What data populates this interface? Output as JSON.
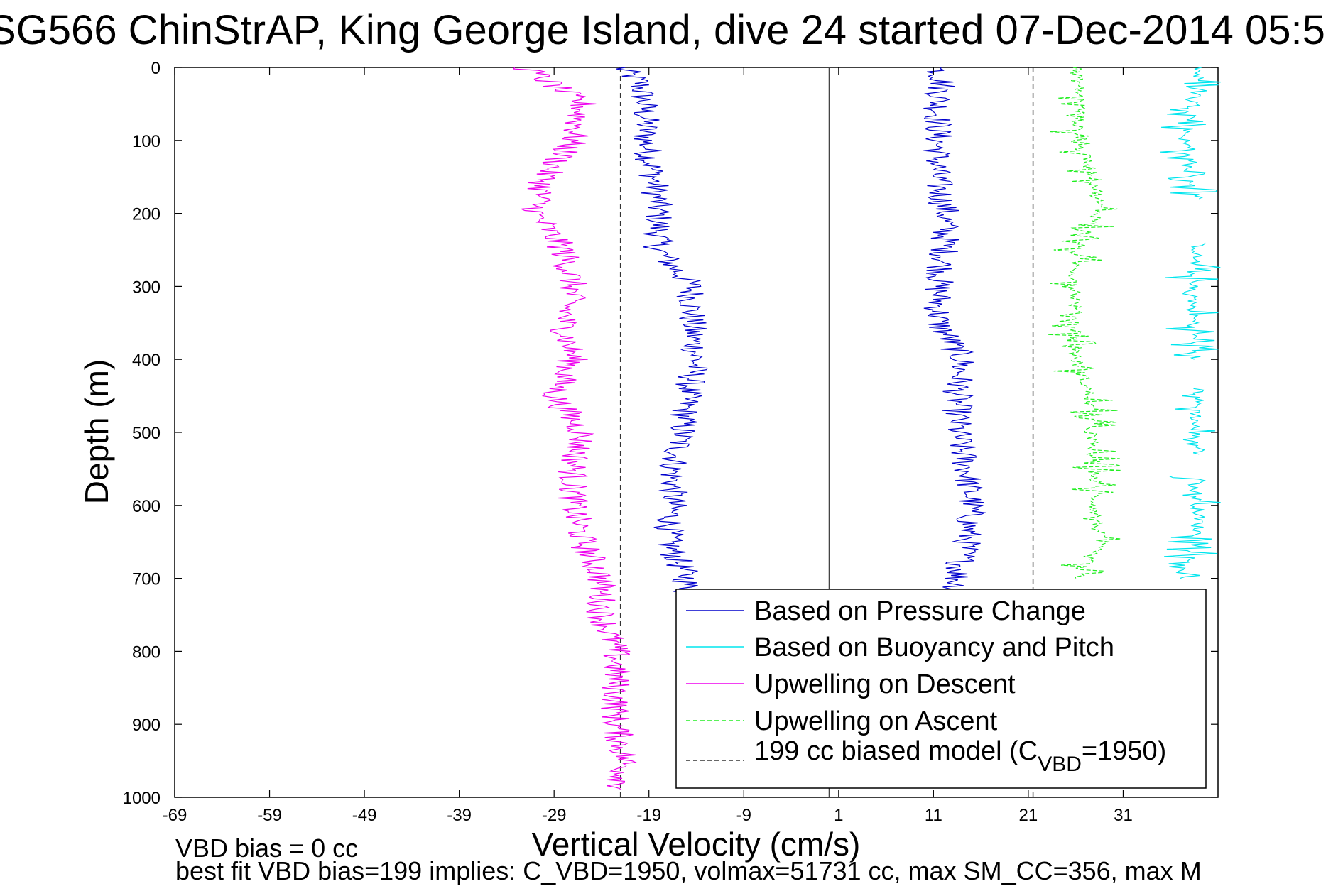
{
  "chart_data": {
    "type": "line",
    "title": "SG566 ChinStrAP, King George Island, dive 24 started 07-Dec-2014 05:5",
    "xlabel": "Vertical Velocity (cm/s)",
    "ylabel": "Depth (m)",
    "xlim": [
      -69,
      41
    ],
    "ylim": [
      1000,
      0
    ],
    "x_ticks": [
      "-69",
      "-59",
      "-49",
      "-39",
      "-29",
      "-19",
      "-9",
      "1",
      "11",
      "21",
      "31"
    ],
    "y_ticks": [
      "0",
      "100",
      "200",
      "300",
      "400",
      "500",
      "600",
      "700",
      "800",
      "900",
      "1000"
    ],
    "grid": false,
    "legend_position": "bottom-right",
    "reference_lines": [
      {
        "x": 0,
        "style": "solid"
      },
      {
        "x": -22,
        "style": "dashed"
      },
      {
        "x": 21.5,
        "style": "dashed"
      }
    ],
    "series": [
      {
        "name": "Based on Pressure Change",
        "color": "#0000cc",
        "style": "solid",
        "segments": [
          {
            "depth": [
              0,
              20,
              50,
              100,
              150,
              200,
              250,
              300,
              350,
              400,
              450,
              500,
              550,
              600,
              650,
              700,
              720
            ],
            "velocity": [
              -22,
              -20,
              -19.5,
              -19.3,
              -18.5,
              -18,
              -18,
              -14.5,
              -14.5,
              -14,
              -15,
              -15.5,
              -16.5,
              -16.5,
              -17,
              -15,
              -15
            ]
          },
          {
            "depth": [
              0,
              20,
              50,
              100,
              150,
              200,
              250,
              300,
              350,
              400,
              450,
              500,
              550,
              600,
              650,
              700,
              720
            ],
            "velocity": [
              11.5,
              12,
              11.5,
              11.5,
              11.3,
              12.3,
              12.2,
              11.5,
              11.5,
              14,
              13.5,
              13.5,
              14.5,
              15,
              14.5,
              13.5,
              13.5
            ]
          }
        ]
      },
      {
        "name": "Based on Buoyancy and Pitch",
        "color": "#00e5ee",
        "style": "solid",
        "segments": [
          {
            "depth": [
              0,
              50,
              100,
              150,
              180
            ],
            "velocity": [
              39,
              38.5,
              37.5,
              38,
              39
            ]
          },
          {
            "depth": [
              240,
              300,
              350,
              400
            ],
            "velocity": [
              39,
              38,
              38.5,
              38.5
            ]
          },
          {
            "depth": [
              440,
              500,
              530
            ],
            "velocity": [
              39,
              38.5,
              39
            ]
          },
          {
            "depth": [
              560,
              620,
              660,
              700
            ],
            "velocity": [
              38.5,
              39,
              38.5,
              37
            ]
          }
        ]
      },
      {
        "name": "Upwelling on Descent",
        "color": "#ee00ee",
        "style": "solid",
        "segments": [
          {
            "depth": [
              0,
              50,
              100,
              150,
              200,
              250,
              300,
              350,
              400,
              450,
              500,
              550,
              600,
              650,
              700,
              750,
              800,
              850,
              900,
              950,
              990
            ],
            "velocity": [
              -32,
              -26,
              -27,
              -30,
              -31,
              -28,
              -27,
              -28,
              -27,
              -29,
              -26,
              -27,
              -27,
              -26,
              -24,
              -24,
              -22.5,
              -22.5,
              -22.5,
              -21.5,
              -22
            ]
          }
        ]
      },
      {
        "name": "Upwelling on Ascent",
        "color": "#22ee22",
        "style": "dashed",
        "segments": [
          {
            "depth": [
              0,
              50,
              100,
              150,
              200,
              250,
              300,
              350,
              400,
              450,
              500,
              550,
              600,
              650,
              700
            ],
            "velocity": [
              26,
              26.5,
              26,
              28,
              28.5,
              26,
              26,
              26,
              26,
              27.5,
              27.5,
              28,
              28,
              28.5,
              26
            ]
          }
        ]
      },
      {
        "name": "199 cc biased model (C",
        "color": "#333333",
        "style": "dashed",
        "segments": []
      }
    ]
  },
  "legend_math": {
    "subscript": "VBD",
    "suffix": "=1950)"
  },
  "footer": {
    "line1": "VBD bias = 0 cc",
    "line2": "best fit VBD bias=199 implies: C_VBD=1950, volmax=51731 cc, max SM_CC=356, max M"
  }
}
